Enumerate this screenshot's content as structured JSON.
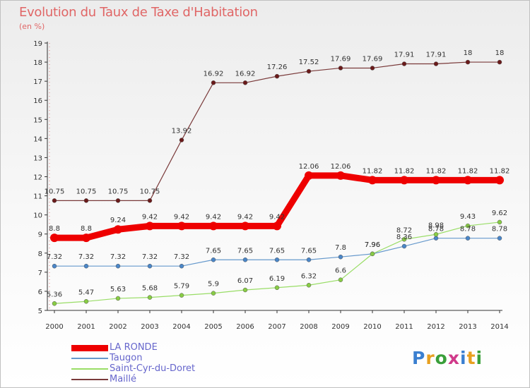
{
  "title": "Evolution du Taux de Taxe d'Habitation",
  "subtitle": "(en %)",
  "logo": {
    "text": "Proxiti",
    "letter_colors": [
      "#3a7fd0",
      "#e8a020",
      "#3a9f3a",
      "#d03a8a",
      "#3a7fd0",
      "#e8a020",
      "#3a9f3a"
    ]
  },
  "chart_data": {
    "type": "line",
    "x": [
      2000,
      2001,
      2002,
      2003,
      2004,
      2005,
      2006,
      2007,
      2008,
      2009,
      2010,
      2011,
      2012,
      2013,
      2014
    ],
    "ylim": [
      5,
      19
    ],
    "yticks": [
      5,
      6,
      7,
      8,
      9,
      10,
      11,
      12,
      13,
      14,
      15,
      16,
      17,
      18,
      19
    ],
    "grid": false,
    "legend_position": "bottom-left",
    "series": [
      {
        "name": "LA RONDE",
        "color": "#ee0000",
        "marker_color": "#ee0000",
        "width": "thick",
        "values": [
          8.8,
          8.8,
          9.24,
          9.42,
          9.42,
          9.42,
          9.42,
          9.42,
          12.06,
          12.06,
          11.82,
          11.82,
          11.82,
          11.82,
          11.82
        ],
        "labels": [
          "8.8",
          "8.8",
          "9.24",
          "9.42",
          "9.42",
          "9.42",
          "9.42",
          "9.42",
          "12.06",
          "12.06",
          "11.82",
          "11.82",
          "11.82",
          "11.82",
          "11.82"
        ],
        "label_position": "above"
      },
      {
        "name": "Taugon",
        "color": "#6699cc",
        "marker_color": "#4a86c8",
        "width": "thin",
        "values": [
          7.32,
          7.32,
          7.32,
          7.32,
          7.32,
          7.65,
          7.65,
          7.65,
          7.65,
          7.8,
          7.96,
          8.36,
          8.78,
          8.78,
          8.78
        ],
        "labels": [
          "7.32",
          "7.32",
          "7.32",
          "7.32",
          "7.32",
          "7.65",
          "7.65",
          "7.65",
          "7.65",
          "7.8",
          "7.96",
          "8.36",
          "8.78",
          "8.78",
          "8.78"
        ],
        "label_position": "above"
      },
      {
        "name": "Saint-Cyr-du-Doret",
        "color": "#99dd66",
        "marker_color": "#88cc44",
        "width": "thin",
        "values": [
          5.36,
          5.47,
          5.63,
          5.68,
          5.79,
          5.9,
          6.07,
          6.19,
          6.32,
          6.6,
          7.96,
          8.72,
          8.98,
          9.43,
          9.62
        ],
        "labels": [
          "5.36",
          "5.47",
          "5.63",
          "5.68",
          "5.79",
          "5.9",
          "6.07",
          "6.19",
          "6.32",
          "6.6",
          "7.96",
          "8.72",
          "8.98",
          "9.43",
          "9.62"
        ],
        "label_position": "above"
      },
      {
        "name": "Maillé",
        "color": "#7a3a3a",
        "marker_color": "#6a1a1a",
        "width": "thin",
        "values": [
          10.75,
          10.75,
          10.75,
          10.75,
          13.92,
          16.92,
          16.92,
          17.26,
          17.52,
          17.69,
          17.69,
          17.91,
          17.91,
          18,
          18
        ],
        "labels": [
          "10.75",
          "10.75",
          "10.75",
          "10.75",
          "13.92",
          "16.92",
          "16.92",
          "17.26",
          "17.52",
          "17.69",
          "17.69",
          "17.91",
          "17.91",
          "18",
          "18"
        ],
        "label_position": "above"
      }
    ]
  }
}
